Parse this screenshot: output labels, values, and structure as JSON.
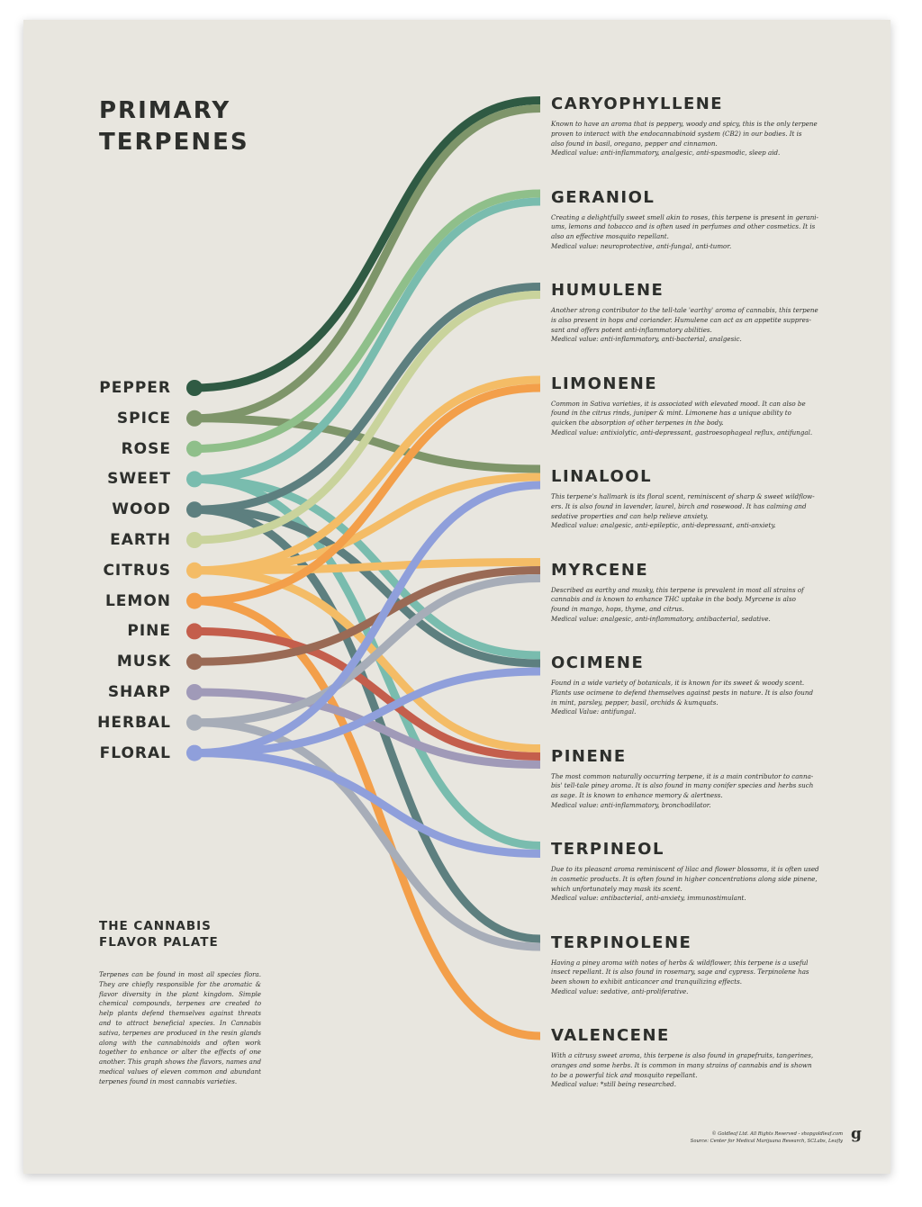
{
  "title": [
    "PRIMARY",
    "TERPENES"
  ],
  "flavors": [
    {
      "label": "PEPPER",
      "color": "#2f5a43"
    },
    {
      "label": "SPICE",
      "color": "#7e956a"
    },
    {
      "label": "ROSE",
      "color": "#8fbf8a"
    },
    {
      "label": "SWEET",
      "color": "#79bcae"
    },
    {
      "label": "WOOD",
      "color": "#5d7f7f"
    },
    {
      "label": "EARTH",
      "color": "#c9d39c"
    },
    {
      "label": "CITRUS",
      "color": "#f4bc66"
    },
    {
      "label": "LEMON",
      "color": "#f39f4a"
    },
    {
      "label": "PINE",
      "color": "#c45e4c"
    },
    {
      "label": "MUSK",
      "color": "#9a6a55"
    },
    {
      "label": "SHARP",
      "color": "#a09ab8"
    },
    {
      "label": "HERBAL",
      "color": "#a7adb8"
    },
    {
      "label": "FLORAL",
      "color": "#8f9fdb"
    }
  ],
  "terpenes": [
    {
      "name": "CARYOPHYLLENE",
      "desc": [
        "Known to have an aroma that is peppery, woody and spicy, this is the only terpene",
        "proven to interact with the endocannabinoid system (CB2) in our bodies. It is",
        "also found in basil, oregano, pepper and cinnamon.",
        "Medical value: anti-inflammatory, analgesic, anti-spasmodic, sleep aid."
      ]
    },
    {
      "name": "GERANIOL",
      "desc": [
        "Creating a delightfully sweet smell akin to roses, this terpene is present in gerani-",
        "ums, lemons and tobacco and is often used in perfumes and other cosmetics. It is",
        "also an effective mosquito repellant.",
        "Medical value: neuroprotective, anti-fungal, anti-tumor."
      ]
    },
    {
      "name": "HUMULENE",
      "desc": [
        "Another strong contributor to the tell-tale 'earthy' aroma of cannabis, this terpene",
        "is also present in hops and coriander. Humulene can act as an appetite suppres-",
        "sant and offers potent anti-inflammatory abilities.",
        "Medical value: anti-inflammatory, anti-bacterial, analgesic."
      ]
    },
    {
      "name": "LIMONENE",
      "desc": [
        "Common in Sativa varieties, it is associated with elevated mood. It can also be",
        "found in the citrus rinds, juniper & mint. Limonene has a unique ability to",
        "quicken the absorption of other terpenes in the body.",
        "Medical value: antixiolytic, anti-depressant, gastroesophageal reflux, antifungal."
      ]
    },
    {
      "name": "LINALOOL",
      "desc": [
        "This terpene's hallmark is its floral scent, reminiscent of sharp & sweet wildflow-",
        "ers. It is also found in lavender, laurel, birch and rosewood. It has calming and",
        "sedative properties and can help relieve anxiety.",
        "Medical value: analgesic, anti-epileptic, anti-depressant, anti-anxiety."
      ]
    },
    {
      "name": "MYRCENE",
      "desc": [
        "Described as earthy and musky, this terpene is prevalent in most all strains of",
        "cannabis and is known to enhance THC uptake in the body. Myrcene is also",
        "found in mango, hops, thyme, and citrus.",
        "Medical value: analgesic, anti-inflammatory, antibacterial, sedative."
      ]
    },
    {
      "name": "OCIMENE",
      "desc": [
        "Found in a wide variety of botanicals, it is known for its sweet & woody scent.",
        "Plants use ocimene to defend themselves against pests in nature. It is also found",
        "in mint, parsley, pepper, basil, orchids & kumquats.",
        "Medical Value: antifungal."
      ]
    },
    {
      "name": "PINENE",
      "desc": [
        "The most common naturally occurring terpene, it is a main contributor to canna-",
        "bis' tell-tale piney aroma. It is also found in many conifer species and herbs such",
        "as sage. It is known to enhance memory & alertness.",
        "Medical value: anti-inflammatory, bronchodilator."
      ]
    },
    {
      "name": "TERPINEOL",
      "desc": [
        "Due to its pleasant aroma reminiscent of lilac and flower blossoms, it is often used",
        "in cosmetic products. It is often found in higher concentrations along side pinene,",
        "which unfortunately may mask its scent.",
        "Medical value: antibacterial, anti-anxiety, immunostimulant."
      ]
    },
    {
      "name": "TERPINOLENE",
      "desc": [
        "Having a piney aroma with notes of herbs & wildflower, this terpene is a useful",
        "insect repellant.  It is also found in rosemary, sage and cypress. Terpinolene has",
        "been shown to exhibit anticancer and tranquilizing effects.",
        "Medical value: sedative, anti-proliferative."
      ]
    },
    {
      "name": "VALENCENE",
      "desc": [
        "With a citrusy sweet aroma, this terpene is also found in grapefruits, tangerines,",
        "oranges and some herbs. It is common in many strains of cannabis and is shown",
        "to be a powerful tick and mosquito repellant.",
        "Medical value: *still being researched."
      ]
    }
  ],
  "links": [
    {
      "from": "PEPPER",
      "to": "CARYOPHYLLENE"
    },
    {
      "from": "SPICE",
      "to": "CARYOPHYLLENE"
    },
    {
      "from": "SPICE",
      "to": "LINALOOL"
    },
    {
      "from": "ROSE",
      "to": "GERANIOL"
    },
    {
      "from": "SWEET",
      "to": "GERANIOL"
    },
    {
      "from": "SWEET",
      "to": "OCIMENE"
    },
    {
      "from": "SWEET",
      "to": "TERPINEOL"
    },
    {
      "from": "WOOD",
      "to": "HUMULENE"
    },
    {
      "from": "WOOD",
      "to": "OCIMENE"
    },
    {
      "from": "WOOD",
      "to": "TERPINOLENE"
    },
    {
      "from": "EARTH",
      "to": "HUMULENE"
    },
    {
      "from": "CITRUS",
      "to": "LIMONENE"
    },
    {
      "from": "CITRUS",
      "to": "LINALOOL"
    },
    {
      "from": "CITRUS",
      "to": "MYRCENE"
    },
    {
      "from": "CITRUS",
      "to": "PINENE"
    },
    {
      "from": "LEMON",
      "to": "LIMONENE"
    },
    {
      "from": "LEMON",
      "to": "VALENCENE"
    },
    {
      "from": "PINE",
      "to": "PINENE"
    },
    {
      "from": "MUSK",
      "to": "MYRCENE"
    },
    {
      "from": "SHARP",
      "to": "PINENE"
    },
    {
      "from": "HERBAL",
      "to": "MYRCENE"
    },
    {
      "from": "HERBAL",
      "to": "TERPINOLENE"
    },
    {
      "from": "FLORAL",
      "to": "LINALOOL"
    },
    {
      "from": "FLORAL",
      "to": "OCIMENE"
    },
    {
      "from": "FLORAL",
      "to": "TERPINEOL"
    }
  ],
  "palate": {
    "title": [
      "THE CANNABIS",
      "FLAVOR PALATE"
    ],
    "text": "Terpenes can be found in most all species flora. They are chiefly responsible for the aromatic & flavor diversity in the plant kingdom. Simple chemical compounds, terpenes are created to help plants defend themselves against threats and to attract beneficial species. In Cannabis sativa, terpenes are produced in the resin glands along with the cannabinoids and often work together to enhance or alter the effects of one another. This graph shows the flavors, names and medical values of eleven common and abundant terpenes found in most cannabis varieties."
  },
  "credits": [
    "© Goldleaf Ltd. All Rights Reserved - shopgoldleaf.com",
    "Source: Center for Medical Marijuana Research, SCLabs, Leafly"
  ],
  "logo": "g"
}
